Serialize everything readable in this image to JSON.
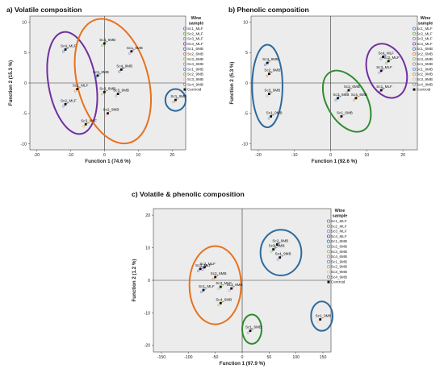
{
  "chart_data": [
    {
      "type": "scatter",
      "title": "a) Volatile composition",
      "xlabel": "Function 1 (74.6 %)",
      "ylabel": "Function 2 (15.3 %)",
      "xlim": [
        -22,
        24
      ],
      "ylim": [
        -11,
        11
      ],
      "xticks": [
        -20,
        -10,
        0,
        10,
        20
      ],
      "yticks": [
        -10,
        -5,
        0,
        5,
        10
      ],
      "grid": false,
      "legend_title": "Wine sample",
      "legend": [
        "Sc1_MLF",
        "Sc2_MLF",
        "Sc3_MLF",
        "Sc4_MLF",
        "Sc1_6MB",
        "Sc2_6MB",
        "Sc3_6MB",
        "Sc4_6MB",
        "Sc1_9MB",
        "Sc2_9MB",
        "Sc3_9MB",
        "Sc4_9MB",
        "Centroid"
      ],
      "centroids": [
        {
          "label": "Sc4_MLF",
          "x": -11.5,
          "y": 5.5
        },
        {
          "label": "Sc4_6MB",
          "x": 0,
          "y": 6.5
        },
        {
          "label": "Sc1_6MB",
          "x": 8,
          "y": 5.2
        },
        {
          "label": "Sc4_9MB",
          "x": 5,
          "y": 2.2
        },
        {
          "label": "Sc2_6MB",
          "x": -2,
          "y": 1.2
        },
        {
          "label": "Sc1_MLF",
          "x": -8,
          "y": -1
        },
        {
          "label": "Sc3_6MB",
          "x": 0,
          "y": -1.5
        },
        {
          "label": "Sc3_9MB",
          "x": 4,
          "y": -1.8
        },
        {
          "label": "Sc2_MLF",
          "x": -11.5,
          "y": -3.5
        },
        {
          "label": "Sc3_MLF",
          "x": -5.5,
          "y": -6.8
        },
        {
          "label": "Sc2_9MB",
          "x": 1,
          "y": -5
        },
        {
          "label": "Sc1_9MB",
          "x": 21,
          "y": -2.8
        }
      ],
      "groups": [
        {
          "color": "#7030a0",
          "cx": -9.5,
          "cy": 0,
          "rx": 7,
          "ry": 8.5,
          "rotate": -10
        },
        {
          "color": "#e8711c",
          "cx": 2.5,
          "cy": 0.3,
          "rx": 10.5,
          "ry": 10.5,
          "rotate": -15
        },
        {
          "color": "#2e6a9c",
          "cx": 21,
          "cy": -2.8,
          "rx": 3,
          "ry": 1.8,
          "rotate": 0
        }
      ]
    },
    {
      "type": "scatter",
      "title": "b) Phenolic composition",
      "xlabel": "Function 1 (92.6 %)",
      "ylabel": "Function 2 (5.3 %)",
      "xlim": [
        -22,
        24
      ],
      "ylim": [
        -11,
        11
      ],
      "xticks": [
        -20,
        -10,
        0,
        10,
        20
      ],
      "yticks": [
        -10,
        -5,
        0,
        5,
        10
      ],
      "grid": false,
      "legend_title": "Wine sample",
      "legend": [
        "Sc1_MLF",
        "Sc2_MLF",
        "Sc3_MLF",
        "Sc4_MLF",
        "Sc1_6MB",
        "Sc2_6MB",
        "Sc3_6MB",
        "Sc4_6MB",
        "Sc1_9MB",
        "Sc2_9MB",
        "Sc3_9MB",
        "Sc4_9MB",
        "Centroid"
      ],
      "centroids": [
        {
          "label": "Sc4_MLF",
          "x": 14.5,
          "y": 4.3
        },
        {
          "label": "Sc2_MLF",
          "x": 16,
          "y": 3.6
        },
        {
          "label": "Sc3_MLF",
          "x": 14,
          "y": 2
        },
        {
          "label": "Sc1_MLF",
          "x": 14,
          "y": -1.2
        },
        {
          "label": "Sc4_9MB",
          "x": -17.5,
          "y": 3.3
        },
        {
          "label": "Sc2_9MB",
          "x": -17,
          "y": 1.5
        },
        {
          "label": "Sc3_9MB",
          "x": -17,
          "y": -1.8
        },
        {
          "label": "Sc2_6MB",
          "x": 5,
          "y": -1.2
        },
        {
          "label": "Sc3_6MB",
          "x": 2,
          "y": -2.5
        },
        {
          "label": "Sc4_6MB",
          "x": 7,
          "y": -2.5
        },
        {
          "label": "Sc1_6MB",
          "x": 3,
          "y": -5.5
        },
        {
          "label": "Sc1_9MB",
          "x": -16.5,
          "y": -5.5
        }
      ],
      "groups": [
        {
          "color": "#7030a0",
          "cx": 15.5,
          "cy": 2,
          "rx": 5.3,
          "ry": 4.6,
          "rotate": -20
        },
        {
          "color": "#2e6a9c",
          "cx": -17.5,
          "cy": -0.5,
          "rx": 4.2,
          "ry": 6.8,
          "rotate": 0
        },
        {
          "color": "#2e8b2e",
          "cx": 4.5,
          "cy": -3,
          "rx": 5.5,
          "ry": 5.5,
          "rotate": -30
        }
      ]
    },
    {
      "type": "scatter",
      "title": "c) Volatile & phenolic composition",
      "xlabel": "Function 1 (97.9 %)",
      "ylabel": "Function 2 (1.2 %)",
      "xlim": [
        -165,
        165
      ],
      "ylim": [
        -22,
        22
      ],
      "xticks": [
        -150,
        -100,
        -50,
        0,
        50,
        100,
        150
      ],
      "yticks": [
        -20,
        -10,
        0,
        10,
        20
      ],
      "grid": false,
      "legend_title": "Wine sample",
      "legend": [
        "Sc1_MLF",
        "Sc2_MLF",
        "Sc3_MLF",
        "Sc4_MLF",
        "Sc1_6MB",
        "Sc2_6MB",
        "Sc3_6MB",
        "Sc4_6MB",
        "Sc1_9MB",
        "Sc2_9MB",
        "Sc3_9MB",
        "Sc4_9MB",
        "Centroid"
      ],
      "centroids": [
        {
          "label": "Sc2_9MB",
          "x": 65,
          "y": 11
        },
        {
          "label": "Sc3_9MB",
          "x": 58,
          "y": 9.5
        },
        {
          "label": "Sc4_9MB",
          "x": 70,
          "y": 7
        },
        {
          "label": "Sc2_MLF",
          "x": -70,
          "y": 4
        },
        {
          "label": "Sc4_MLF",
          "x": -78,
          "y": 3.5
        },
        {
          "label": "Sc2_6MB",
          "x": -50,
          "y": 1
        },
        {
          "label": "Sc3_MLF",
          "x": -40,
          "y": -2
        },
        {
          "label": "Sc3_6MB",
          "x": -20,
          "y": -2.5
        },
        {
          "label": "Sc1_MLF",
          "x": -72,
          "y": -3
        },
        {
          "label": "Sc4_6MB",
          "x": -40,
          "y": -7
        },
        {
          "label": "Sc1_9MB",
          "x": 145,
          "y": -12
        },
        {
          "label": "Sc1_6MB",
          "x": 15,
          "y": -15.5
        }
      ],
      "groups": [
        {
          "color": "#e8711c",
          "cx": -50,
          "cy": -1.5,
          "rx": 48,
          "ry": 12,
          "rotate": 0
        },
        {
          "color": "#2e6a9c",
          "cx": 72,
          "cy": 8.5,
          "rx": 38,
          "ry": 7,
          "rotate": 0
        },
        {
          "color": "#2e6a9c",
          "cx": 148,
          "cy": -11,
          "rx": 20,
          "ry": 4.5,
          "rotate": 0
        },
        {
          "color": "#2e8b2e",
          "cx": 18,
          "cy": -15,
          "rx": 18,
          "ry": 4.5,
          "rotate": 0
        }
      ]
    }
  ],
  "legend_colors": [
    "#3b6fb6",
    "#6aa84f",
    "#8e7cc3",
    "#7030a0",
    "#3b6fb6",
    "#e8711c",
    "#8fbc3f",
    "#c27ba0",
    "#4a86c7",
    "#c9a227",
    "#e6b89c",
    "#888888",
    "#111111"
  ]
}
